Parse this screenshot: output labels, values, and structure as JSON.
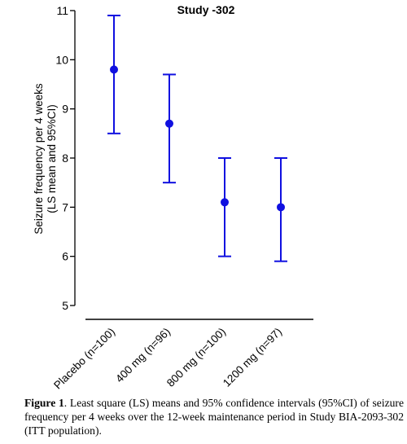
{
  "chart_data": {
    "type": "scatter",
    "title": "Study -302",
    "ylabel_line1": "Seizure frequency per 4 weeks",
    "ylabel_line2": "(LS mean and 95%CI)",
    "xlabel": "",
    "ylim": [
      5,
      11
    ],
    "yticks": [
      5,
      6,
      7,
      8,
      9,
      10,
      11
    ],
    "grid": false,
    "categories": [
      "Placebo (n=100)",
      "400 mg (n=96)",
      "800 mg (n=100)",
      "1200 mg (n=97)"
    ],
    "series": [
      {
        "values": [
          9.8,
          8.7,
          7.1,
          7.0
        ],
        "ci_lower": [
          8.5,
          7.5,
          6.0,
          5.9
        ],
        "ci_upper": [
          10.9,
          9.7,
          8.0,
          8.0
        ]
      }
    ],
    "colors": {
      "marker": "#1010e0",
      "axis": "#000000"
    }
  },
  "caption": {
    "label": "Figure 1",
    "text": ". Least square (LS) means and 95% confidence intervals (95%CI) of seizure frequency per 4 weeks over the 12-week maintenance period in Study BIA-2093-302 (ITT population)."
  }
}
